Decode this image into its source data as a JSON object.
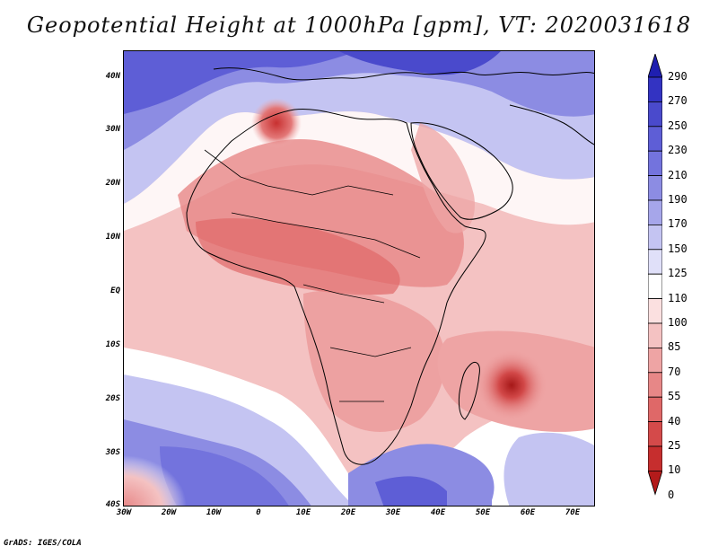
{
  "title": "Geopotential Height at 1000hPa [gpm], VT: 2020031618",
  "footer": "GrADS: IGES/COLA",
  "lat_labels": [
    "40N",
    "30N",
    "20N",
    "10N",
    "EQ",
    "10S",
    "20S",
    "30S",
    "40S"
  ],
  "lon_labels": [
    "30W",
    "20W",
    "10W",
    "0",
    "10E",
    "20E",
    "30E",
    "40E",
    "50E",
    "60E",
    "70E"
  ],
  "colorbar": {
    "levels": [
      "290",
      "270",
      "250",
      "230",
      "210",
      "190",
      "170",
      "150",
      "125",
      "110",
      "100",
      "85",
      "70",
      "55",
      "40",
      "25",
      "10",
      "0"
    ],
    "colors": [
      "#1f1fb0",
      "#3333c2",
      "#4a4acc",
      "#5e5ed6",
      "#7373dd",
      "#8c8ce3",
      "#a6a6ea",
      "#c4c4f2",
      "#e0e0f9",
      "#ffffff",
      "#fbe0e0",
      "#f4c2c2",
      "#eea4a4",
      "#e78787",
      "#df6868",
      "#d44a4a",
      "#c62e2e",
      "#b31b1b"
    ]
  }
}
